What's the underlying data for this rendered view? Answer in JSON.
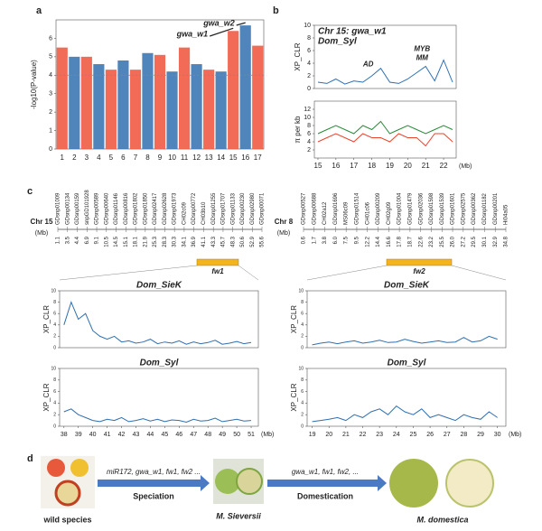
{
  "panel_labels": [
    "a",
    "b",
    "c",
    "d"
  ],
  "chart_data": [
    {
      "type": "manhattan",
      "ylabel": "-log10(P-value)",
      "categories": [
        "1",
        "2",
        "3",
        "4",
        "5",
        "6",
        "7",
        "8",
        "9",
        "10",
        "11",
        "12",
        "13",
        "14",
        "15",
        "16",
        "17"
      ],
      "values": [
        5.5,
        5,
        5,
        4.6,
        4.3,
        4.8,
        4.3,
        5.2,
        5.1,
        4.2,
        5.5,
        4.6,
        4.3,
        4.2,
        6.4,
        6.7,
        5.6
      ],
      "colors": [
        "#ef5b45",
        "#3c78b4"
      ],
      "threshold": 4,
      "ylim": [
        0,
        7
      ],
      "yticks": [
        0,
        1,
        2,
        3,
        4,
        5,
        6
      ],
      "annotations": [
        "gwa_w1",
        "gwa_w2"
      ]
    },
    {
      "type": "line",
      "title": "Chr 15: gwa_w1",
      "subtitle": "Dom_Syl",
      "ylabel": "XP_CLR",
      "x": [
        15,
        15.5,
        16,
        16.5,
        17,
        17.5,
        18,
        18.5,
        19,
        19.5,
        20,
        20.5,
        21,
        21.5,
        22,
        22.5
      ],
      "series": [
        {
          "color": "#2f6fb0",
          "values": [
            1,
            0.8,
            1.5,
            0.7,
            1.2,
            1,
            2,
            3.2,
            1,
            0.8,
            1.5,
            2.5,
            3.5,
            1.2,
            4.5,
            1
          ]
        }
      ],
      "xlim": [
        14.8,
        22.7
      ],
      "ylim": [
        0,
        10
      ],
      "yticks": [
        0,
        2,
        4,
        6,
        8,
        10
      ],
      "annotations": [
        "AD",
        "MYB",
        "MM"
      ]
    },
    {
      "type": "line",
      "ylabel": "π per kb",
      "xlabel": "(Mb)",
      "x": [
        15,
        15.5,
        16,
        16.5,
        17,
        17.5,
        18,
        18.5,
        19,
        19.5,
        20,
        20.5,
        21,
        21.5,
        22,
        22.5
      ],
      "series": [
        {
          "color": "#2a8a3a",
          "values": [
            6,
            7,
            8,
            7,
            6,
            8,
            7,
            9,
            6,
            7,
            8,
            7,
            6,
            7,
            8,
            7
          ]
        },
        {
          "color": "#e8442e",
          "values": [
            4,
            5,
            6,
            5,
            4,
            6,
            5,
            5,
            4,
            6,
            5,
            5,
            3,
            6,
            6,
            4
          ]
        }
      ],
      "xlim": [
        14.8,
        22.7
      ],
      "ylim": [
        0,
        14
      ],
      "yticks": [
        2,
        4,
        6,
        8,
        10,
        12
      ],
      "xticks": [
        15,
        16,
        17,
        18,
        19,
        20,
        21,
        22
      ]
    },
    {
      "type": "line",
      "title": "Dom_SieK",
      "ylabel": "XP_CLR",
      "x": [
        38,
        38.5,
        39,
        39.5,
        40,
        40.5,
        41,
        41.5,
        42,
        42.5,
        43,
        43.5,
        44,
        44.5,
        45,
        45.5,
        46,
        46.5,
        47,
        47.5,
        48,
        48.5,
        49,
        49.5,
        50,
        50.5,
        51
      ],
      "series": [
        {
          "color": "#2f6fb0",
          "values": [
            4,
            8,
            5,
            6,
            3,
            2,
            1.5,
            2,
            1,
            1.2,
            0.8,
            1,
            1.5,
            0.7,
            1,
            0.8,
            1.2,
            0.6,
            1,
            0.7,
            0.9,
            1.3,
            0.6,
            0.8,
            1.1,
            0.7,
            0.9
          ]
        }
      ],
      "xlim": [
        37.7,
        51.5
      ],
      "ylim": [
        0,
        10
      ],
      "yticks": [
        0,
        2,
        4,
        6,
        8,
        10
      ]
    },
    {
      "type": "line",
      "title": "Dom_Syl",
      "ylabel": "XP_CLR",
      "xlabel": "(Mb)",
      "x": [
        38,
        38.5,
        39,
        39.5,
        40,
        40.5,
        41,
        41.5,
        42,
        42.5,
        43,
        43.5,
        44,
        44.5,
        45,
        45.5,
        46,
        46.5,
        47,
        47.5,
        48,
        48.5,
        49,
        49.5,
        50,
        50.5,
        51
      ],
      "series": [
        {
          "color": "#2f6fb0",
          "values": [
            2.5,
            3,
            2,
            1.5,
            1,
            0.8,
            1.2,
            1,
            1.5,
            0.8,
            1,
            1.3,
            0.9,
            1.2,
            0.8,
            1.1,
            1,
            0.7,
            1.2,
            0.9,
            1,
            1.4,
            0.8,
            1,
            1.2,
            0.9,
            1
          ]
        }
      ],
      "xlim": [
        37.7,
        51.5
      ],
      "ylim": [
        0,
        10
      ],
      "yticks": [
        0,
        2,
        4,
        6,
        8,
        10
      ],
      "xticks": [
        38,
        39,
        40,
        41,
        42,
        43,
        44,
        45,
        46,
        47,
        48,
        49,
        50,
        51
      ]
    },
    {
      "type": "line",
      "title": "Dom_SieK",
      "ylabel": "XP_CLR",
      "x": [
        19,
        19.5,
        20,
        20.5,
        21,
        21.5,
        22,
        22.5,
        23,
        23.5,
        24,
        24.5,
        25,
        25.5,
        26,
        26.5,
        27,
        27.5,
        28,
        28.5,
        29,
        29.5,
        30
      ],
      "series": [
        {
          "color": "#2f6fb0",
          "values": [
            0.5,
            0.8,
            1,
            0.7,
            1,
            1.2,
            0.8,
            1,
            1.3,
            0.9,
            1,
            1.5,
            1.1,
            0.8,
            1,
            1.2,
            0.9,
            1,
            1.8,
            1,
            1.2,
            2,
            1.5
          ]
        }
      ],
      "xlim": [
        18.7,
        30.5
      ],
      "ylim": [
        0,
        10
      ],
      "yticks": [
        0,
        2,
        4,
        6,
        8,
        10
      ]
    },
    {
      "type": "line",
      "title": "Dom_Syl",
      "ylabel": "XP_CLR",
      "xlabel": "(Mb)",
      "x": [
        19,
        19.5,
        20,
        20.5,
        21,
        21.5,
        22,
        22.5,
        23,
        23.5,
        24,
        24.5,
        25,
        25.5,
        26,
        26.5,
        27,
        27.5,
        28,
        28.5,
        29,
        29.5,
        30
      ],
      "series": [
        {
          "color": "#2f6fb0",
          "values": [
            0.8,
            1,
            1.2,
            1.5,
            1,
            2,
            1.5,
            2.5,
            3,
            2,
            3.5,
            2.5,
            2,
            3,
            1.5,
            2,
            1.5,
            1,
            2,
            1.5,
            1.2,
            2.5,
            1.5
          ]
        }
      ],
      "xlim": [
        18.7,
        30.5
      ],
      "ylim": [
        0,
        10
      ],
      "yticks": [
        0,
        2,
        4,
        6,
        8,
        10
      ],
      "xticks": [
        19,
        20,
        21,
        22,
        23,
        24,
        25,
        26,
        27,
        28,
        29,
        30
      ]
    }
  ],
  "genetic_maps": [
    {
      "chromosome": "Chr 15",
      "unit": "(Mb)",
      "region": "fw1",
      "markers": [
        "GDsnp01009",
        "GDsnp00134",
        "GDsnp00159",
        "snpGD101928",
        "GDsnp00589",
        "GDsnp00640",
        "GDsnp01146",
        "GDsnp00816",
        "GDsnp01802",
        "GDsnp01850",
        "GDsnp02417",
        "GDsnp02628",
        "GDsnp01973",
        "CH02c09",
        "GDsnp00772",
        "CH03b10",
        "GDsnp01255",
        "GDsnp01707",
        "GDsnp01133",
        "GDsnp00230",
        "GDsnp02980",
        "GDsnp00071"
      ],
      "positions": [
        "1.1",
        "3.5",
        "4.4",
        "6.9",
        "9.1",
        "10.5",
        "14.5",
        "15.1",
        "18.1",
        "21.9",
        "25.3",
        "28.3",
        "30.3",
        "34.1",
        "36.9",
        "41.1",
        "43.3",
        "45.7",
        "48.3",
        "50.6",
        "52.9",
        "55.6"
      ]
    },
    {
      "chromosome": "Chr 8",
      "unit": "(Mb)",
      "region": "fw2",
      "markers": [
        "GDsnp00527",
        "GDsnp00688",
        "CH02a12",
        "GDsnp01696",
        "MS06c09",
        "GDsnp01514",
        "CH01c06",
        "GDsnp00209",
        "CH02g09",
        "GDsnp01004",
        "GDsnp01479",
        "GDsnp02036",
        "GDsnp01598",
        "GDsnp01539",
        "GDsnp01601",
        "GDsnp02575",
        "GDsnp00362",
        "GDsnp01182",
        "GDsnp00201",
        "Hi04a05"
      ],
      "positions": [
        "0.6",
        "1.7",
        "3.8",
        "6.0",
        "7.5",
        "9.5",
        "12.2",
        "14.4",
        "16.6",
        "17.8",
        "18.7",
        "22.6",
        "23.2",
        "25.5",
        "26.0",
        "27.2",
        "29.5",
        "30.1",
        "32.9",
        "34.8"
      ]
    }
  ],
  "diagram": {
    "arrow1_top": "miR172, gwa_w1, fw1, fw2 ...",
    "arrow1_bottom": "Speciation",
    "arrow2_top": "gwa_w1, fw1, fw2, ...",
    "arrow2_bottom": "Domestication",
    "labels": [
      "wild species",
      "M. Sieversii",
      "M. domestica"
    ]
  }
}
